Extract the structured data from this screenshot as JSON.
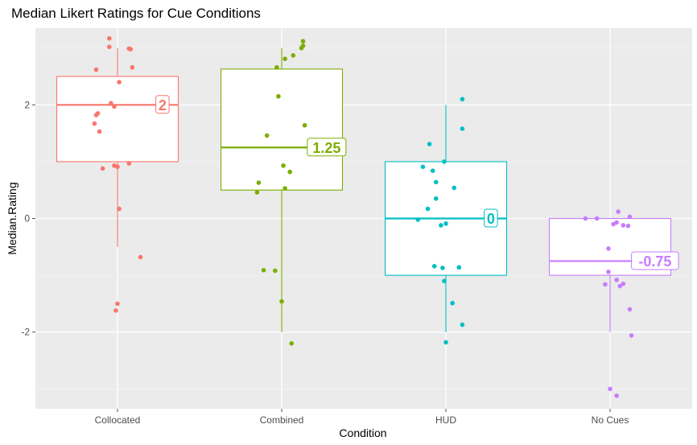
{
  "chart_data": {
    "type": "box",
    "title": "Median Likert Ratings for Cue Conditions",
    "xlabel": "Condition",
    "ylabel": "Median.Rating",
    "ylim": [
      -3.35,
      3.35
    ],
    "yticks": [
      -2,
      0,
      2
    ],
    "grid": true,
    "legend": "none",
    "colors": {
      "panel": "#EBEBEB",
      "grid_major": "#FFFFFF",
      "grid_minor": "#F4F4F4",
      "tick": "#4D4D4D"
    },
    "categories": [
      "Collocated",
      "Combined",
      "HUD",
      "No Cues"
    ],
    "series": [
      {
        "category": "Collocated",
        "color": "#F8766D",
        "whisker_low": -0.5,
        "q1": 1.0,
        "median": 2.0,
        "q3": 2.5,
        "whisker_high": 3.0,
        "label": "2",
        "points": [
          {
            "x": -0.05,
            "y": 3.17
          },
          {
            "x": -0.05,
            "y": 3.02
          },
          {
            "x": 0.07,
            "y": 2.99
          },
          {
            "x": 0.08,
            "y": 2.98
          },
          {
            "x": 0.09,
            "y": 2.66
          },
          {
            "x": -0.13,
            "y": 2.62
          },
          {
            "x": 0.01,
            "y": 2.4
          },
          {
            "x": -0.04,
            "y": 2.03
          },
          {
            "x": -0.02,
            "y": 1.97
          },
          {
            "x": -0.12,
            "y": 1.85
          },
          {
            "x": -0.13,
            "y": 1.82
          },
          {
            "x": -0.14,
            "y": 1.67
          },
          {
            "x": -0.11,
            "y": 1.53
          },
          {
            "x": 0.07,
            "y": 0.97
          },
          {
            "x": -0.02,
            "y": 0.93
          },
          {
            "x": 0.0,
            "y": 0.91
          },
          {
            "x": -0.09,
            "y": 0.88
          },
          {
            "x": 0.01,
            "y": 0.17
          },
          {
            "x": 0.14,
            "y": -0.68
          },
          {
            "x": 0.0,
            "y": -1.5
          },
          {
            "x": -0.01,
            "y": -1.62
          }
        ]
      },
      {
        "category": "Combined",
        "color": "#7CAE00",
        "whisker_low": -2.0,
        "q1": 0.5,
        "median": 1.25,
        "q3": 2.63,
        "whisker_high": 3.0,
        "label": "1.25",
        "points": [
          {
            "x": 0.13,
            "y": 3.12
          },
          {
            "x": 0.13,
            "y": 3.04
          },
          {
            "x": 0.12,
            "y": 3.0
          },
          {
            "x": 0.07,
            "y": 2.87
          },
          {
            "x": 0.02,
            "y": 2.81
          },
          {
            "x": -0.03,
            "y": 2.66
          },
          {
            "x": -0.02,
            "y": 2.15
          },
          {
            "x": 0.14,
            "y": 1.64
          },
          {
            "x": -0.09,
            "y": 1.46
          },
          {
            "x": 0.01,
            "y": 0.93
          },
          {
            "x": 0.05,
            "y": 0.82
          },
          {
            "x": -0.14,
            "y": 0.63
          },
          {
            "x": 0.02,
            "y": 0.53
          },
          {
            "x": -0.15,
            "y": 0.46
          },
          {
            "x": -0.11,
            "y": -0.91
          },
          {
            "x": -0.04,
            "y": -0.92
          },
          {
            "x": 0.0,
            "y": -1.46
          },
          {
            "x": 0.06,
            "y": -2.2
          }
        ]
      },
      {
        "category": "HUD",
        "color": "#00BFC4",
        "whisker_low": -2.0,
        "q1": -1.0,
        "median": 0.0,
        "q3": 1.0,
        "whisker_high": 2.0,
        "label": "0",
        "points": [
          {
            "x": 0.1,
            "y": 2.1
          },
          {
            "x": 0.1,
            "y": 1.58
          },
          {
            "x": -0.1,
            "y": 1.31
          },
          {
            "x": -0.01,
            "y": 1.0
          },
          {
            "x": -0.14,
            "y": 0.91
          },
          {
            "x": -0.08,
            "y": 0.84
          },
          {
            "x": -0.06,
            "y": 0.64
          },
          {
            "x": 0.05,
            "y": 0.54
          },
          {
            "x": -0.06,
            "y": 0.35
          },
          {
            "x": -0.11,
            "y": 0.17
          },
          {
            "x": -0.17,
            "y": -0.02
          },
          {
            "x": 0.0,
            "y": -0.09
          },
          {
            "x": -0.03,
            "y": -0.12
          },
          {
            "x": -0.07,
            "y": -0.84
          },
          {
            "x": 0.08,
            "y": -0.86
          },
          {
            "x": -0.02,
            "y": -0.87
          },
          {
            "x": -0.01,
            "y": -1.1
          },
          {
            "x": 0.04,
            "y": -1.49
          },
          {
            "x": 0.1,
            "y": -1.87
          },
          {
            "x": 0.0,
            "y": -2.18
          }
        ]
      },
      {
        "category": "No Cues",
        "color": "#C77CFF",
        "whisker_low": -2.0,
        "q1": -1.0,
        "median": -0.75,
        "q3": 0.0,
        "whisker_high": 0.0,
        "label": "-0.75",
        "points": [
          {
            "x": 0.05,
            "y": 0.12
          },
          {
            "x": 0.12,
            "y": 0.03
          },
          {
            "x": -0.15,
            "y": 0.0
          },
          {
            "x": -0.08,
            "y": 0.0
          },
          {
            "x": 0.04,
            "y": -0.07
          },
          {
            "x": 0.02,
            "y": -0.1
          },
          {
            "x": 0.08,
            "y": -0.12
          },
          {
            "x": 0.11,
            "y": -0.13
          },
          {
            "x": -0.01,
            "y": -0.53
          },
          {
            "x": -0.01,
            "y": -0.94
          },
          {
            "x": 0.04,
            "y": -1.08
          },
          {
            "x": 0.08,
            "y": -1.15
          },
          {
            "x": -0.03,
            "y": -1.16
          },
          {
            "x": 0.06,
            "y": -1.19
          },
          {
            "x": 0.12,
            "y": -1.6
          },
          {
            "x": 0.13,
            "y": -2.06
          },
          {
            "x": 0.0,
            "y": -3.0
          },
          {
            "x": 0.04,
            "y": -3.12
          }
        ]
      }
    ]
  }
}
